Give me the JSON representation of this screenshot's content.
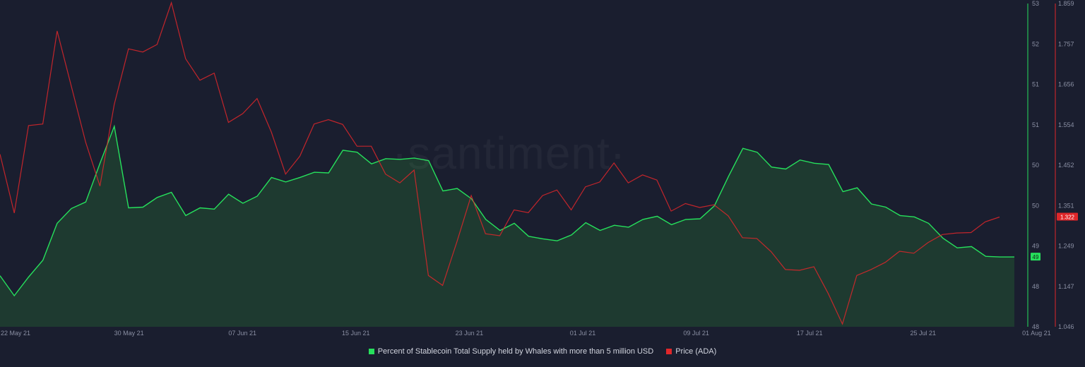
{
  "chart_data": {
    "type": "line",
    "watermark": "·santiment·",
    "x_ticks": [
      "22 May 21",
      "30 May 21",
      "07 Jun 21",
      "15 Jun 21",
      "23 Jun 21",
      "01 Jul 21",
      "09 Jul 21",
      "17 Jul 21",
      "25 Jul 21",
      "01 Aug 21"
    ],
    "y_left": {
      "ticks": [
        "53",
        "52",
        "51",
        "51",
        "50",
        "50",
        "49",
        "48",
        "48"
      ],
      "min": 48,
      "max": 53
    },
    "y_right": {
      "ticks": [
        "1.859",
        "1.757",
        "1.656",
        "1.554",
        "1.452",
        "1.351",
        "1.249",
        "1.147",
        "1.046"
      ],
      "min": 1.046,
      "max": 1.859
    },
    "series": [
      {
        "name": "Percent of Stablecoin Total Supply held by Whales with more than 5 million USD",
        "color": "#26e05c",
        "axis": "left",
        "badge": "49",
        "values": [
          48.79,
          48.48,
          48.77,
          49.03,
          49.6,
          49.83,
          49.93,
          50.53,
          51.1,
          49.84,
          49.85,
          50.0,
          50.08,
          49.72,
          49.84,
          49.82,
          50.05,
          49.91,
          50.02,
          50.31,
          50.24,
          50.31,
          50.39,
          50.38,
          50.73,
          50.7,
          50.52,
          50.6,
          50.59,
          50.61,
          50.57,
          50.1,
          50.14,
          49.98,
          49.66,
          49.49,
          49.6,
          49.4,
          49.36,
          49.33,
          49.42,
          49.61,
          49.49,
          49.57,
          49.54,
          49.66,
          49.71,
          49.58,
          49.66,
          49.67,
          49.87,
          50.33,
          50.76,
          50.7,
          50.47,
          50.44,
          50.58,
          50.53,
          50.51,
          50.09,
          50.15,
          49.9,
          49.85,
          49.72,
          49.7,
          49.6,
          49.37,
          49.22,
          49.24,
          49.09,
          49.08,
          49.08
        ]
      },
      {
        "name": "Price (ADA)",
        "color": "#e0272a",
        "axis": "right",
        "badge": "1.322",
        "values": [
          1.48,
          1.332,
          1.552,
          1.556,
          1.79,
          1.65,
          1.51,
          1.4,
          1.605,
          1.745,
          1.737,
          1.756,
          1.861,
          1.72,
          1.666,
          1.684,
          1.56,
          1.582,
          1.62,
          1.536,
          1.43,
          1.475,
          1.556,
          1.567,
          1.555,
          1.5,
          1.5,
          1.43,
          1.408,
          1.44,
          1.175,
          1.15,
          1.26,
          1.376,
          1.28,
          1.275,
          1.34,
          1.333,
          1.376,
          1.39,
          1.34,
          1.398,
          1.41,
          1.458,
          1.408,
          1.428,
          1.415,
          1.337,
          1.356,
          1.346,
          1.353,
          1.325,
          1.27,
          1.268,
          1.235,
          1.19,
          1.188,
          1.197,
          1.13,
          1.053,
          1.175,
          1.19,
          1.208,
          1.236,
          1.231,
          1.258,
          1.278,
          1.282,
          1.283,
          1.31,
          1.322
        ]
      }
    ]
  }
}
